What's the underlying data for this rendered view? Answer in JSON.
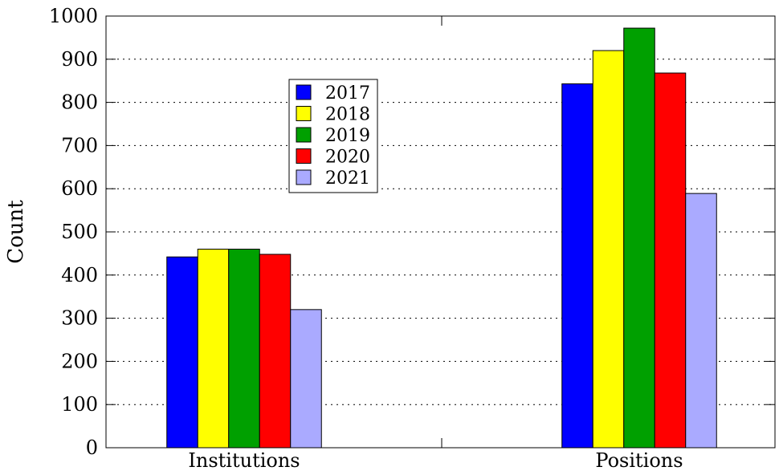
{
  "chart_data": {
    "type": "bar",
    "title": "",
    "xlabel": "",
    "ylabel": "Count",
    "categories": [
      "Institutions",
      "Positions"
    ],
    "series": [
      {
        "name": "2017",
        "color": "#0000ff",
        "values": [
          442,
          843
        ]
      },
      {
        "name": "2018",
        "color": "#ffff00",
        "values": [
          460,
          920
        ]
      },
      {
        "name": "2019",
        "color": "#00a000",
        "values": [
          460,
          972
        ]
      },
      {
        "name": "2020",
        "color": "#ff0000",
        "values": [
          448,
          868
        ]
      },
      {
        "name": "2021",
        "color": "#aaaaff",
        "values": [
          320,
          589
        ]
      }
    ],
    "ylim": [
      0,
      1000
    ],
    "yticks": [
      0,
      100,
      200,
      300,
      400,
      500,
      600,
      700,
      800,
      900,
      1000
    ],
    "grid": "horizontal dotted",
    "legend_position": "upper-left-center"
  }
}
